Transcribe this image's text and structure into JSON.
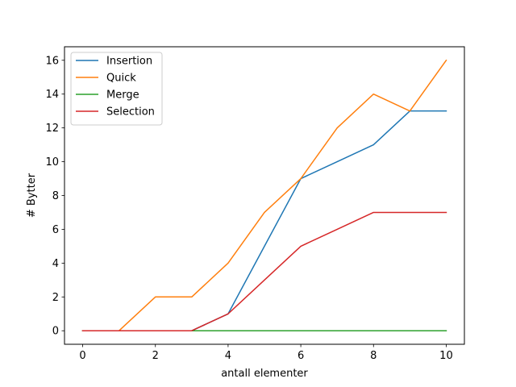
{
  "chart_data": {
    "type": "line",
    "title": "",
    "xlabel": "antall elementer",
    "ylabel": "# Bytter",
    "x": [
      0,
      1,
      2,
      3,
      4,
      5,
      6,
      7,
      8,
      9,
      10
    ],
    "xlim": [
      -0.5,
      10.5
    ],
    "ylim": [
      -0.8,
      16.8
    ],
    "xticks": [
      0,
      2,
      4,
      6,
      8,
      10
    ],
    "yticks": [
      0,
      2,
      4,
      6,
      8,
      10,
      12,
      14,
      16
    ],
    "grid": false,
    "legend_position": "top-left",
    "series": [
      {
        "name": "Insertion",
        "color": "#1f77b4",
        "values": [
          0,
          0,
          0,
          0,
          1,
          5,
          9,
          10,
          11,
          13,
          13
        ]
      },
      {
        "name": "Quick",
        "color": "#ff7f0e",
        "values": [
          0,
          0,
          2,
          2,
          4,
          7,
          9,
          12,
          14,
          13,
          16
        ]
      },
      {
        "name": "Merge",
        "color": "#2ca02c",
        "values": [
          0,
          0,
          0,
          0,
          0,
          0,
          0,
          0,
          0,
          0,
          0
        ]
      },
      {
        "name": "Selection",
        "color": "#d62728",
        "values": [
          0,
          0,
          0,
          0,
          1,
          3,
          5,
          6,
          7,
          7,
          7
        ]
      }
    ]
  }
}
